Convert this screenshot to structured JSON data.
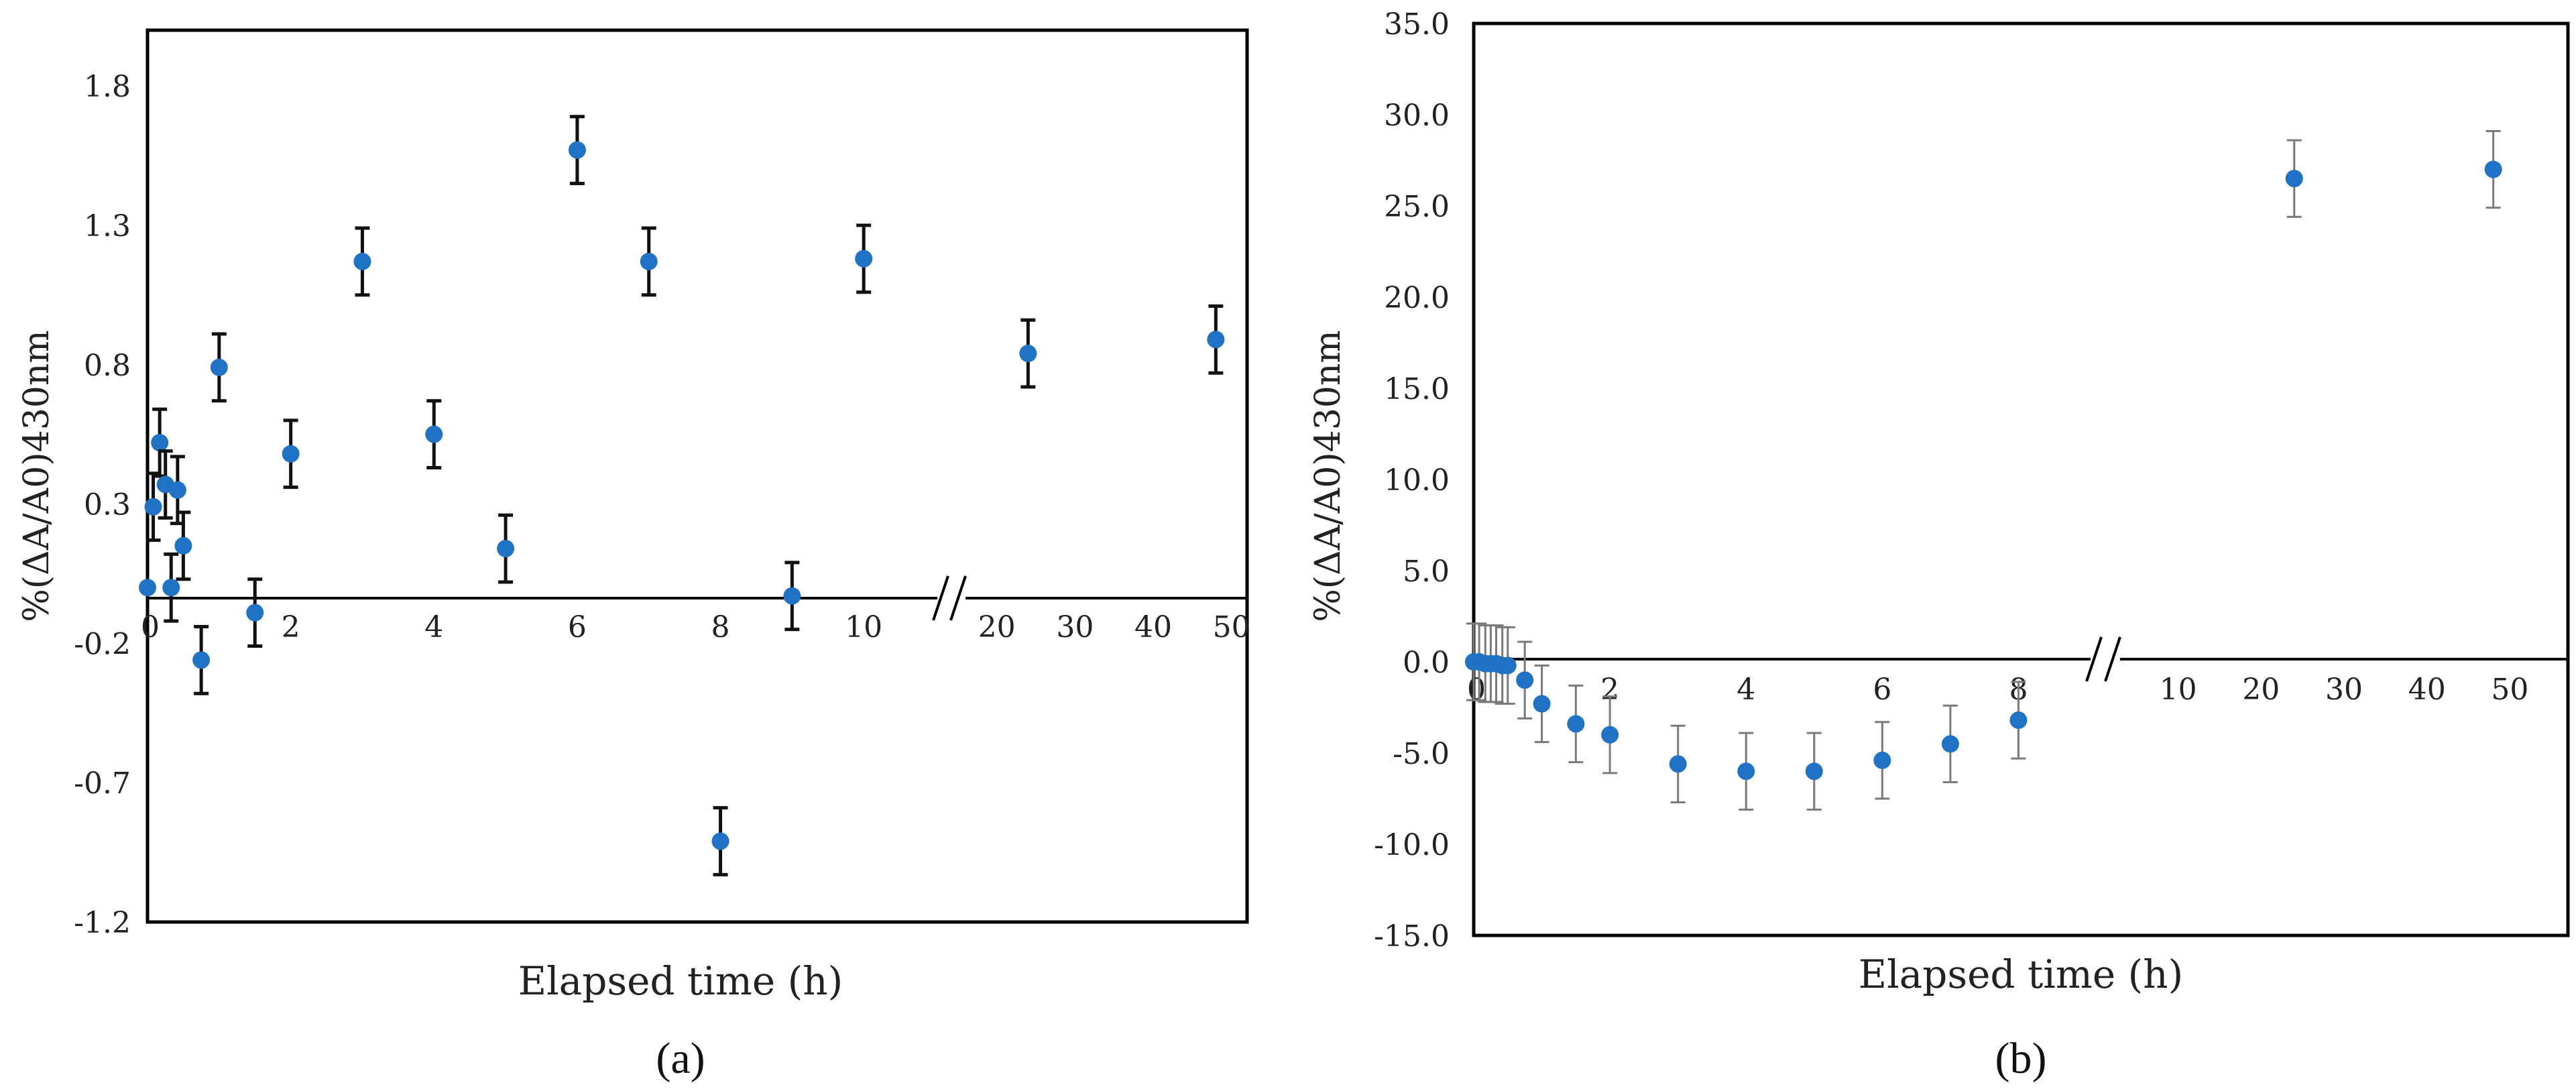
{
  "colors": {
    "marker": "#1f72c4",
    "error_bar_a": "#111111",
    "error_bar_b": "#7a7a7a",
    "frame": "#000000"
  },
  "chart_data": [
    {
      "type": "scatter",
      "panel_label": "(a)",
      "xlabel": "Elapsed time (h)",
      "ylabel": "%(ΔA/A0)430nm",
      "ylim": [
        -1.2,
        2.0
      ],
      "yticks": [
        "1.8",
        "1.3",
        "0.8",
        "0.3",
        "-0.2",
        "-0.7",
        "-1.2"
      ],
      "ytick_values": [
        1.8,
        1.3,
        0.8,
        0.3,
        -0.2,
        -0.7,
        -1.2
      ],
      "xlim_linear": [
        0,
        11
      ],
      "xticks_linear": [
        "0",
        "2",
        "4",
        "6",
        "8",
        "10"
      ],
      "xtick_linear_values": [
        0,
        2,
        4,
        6,
        8,
        10
      ],
      "xticks_broken": [
        "20",
        "30",
        "40",
        "50"
      ],
      "xtick_broken_values": [
        20,
        30,
        40,
        50
      ],
      "broken_range": [
        16,
        52
      ],
      "axis_break_at": 11,
      "points": [
        {
          "x": 0.0,
          "y": 0.0,
          "err": 0.0
        },
        {
          "x": 0.08,
          "y": 0.29,
          "err": 0.12
        },
        {
          "x": 0.17,
          "y": 0.52,
          "err": 0.12
        },
        {
          "x": 0.25,
          "y": 0.37,
          "err": 0.12
        },
        {
          "x": 0.33,
          "y": 0.0,
          "err": 0.12
        },
        {
          "x": 0.42,
          "y": 0.35,
          "err": 0.12
        },
        {
          "x": 0.5,
          "y": 0.15,
          "err": 0.12
        },
        {
          "x": 0.75,
          "y": -0.26,
          "err": 0.12
        },
        {
          "x": 1.0,
          "y": 0.79,
          "err": 0.12
        },
        {
          "x": 1.5,
          "y": -0.09,
          "err": 0.12
        },
        {
          "x": 2.0,
          "y": 0.48,
          "err": 0.12
        },
        {
          "x": 3.0,
          "y": 1.17,
          "err": 0.12
        },
        {
          "x": 4.0,
          "y": 0.55,
          "err": 0.12
        },
        {
          "x": 5.0,
          "y": 0.14,
          "err": 0.12
        },
        {
          "x": 6.0,
          "y": 1.57,
          "err": 0.12
        },
        {
          "x": 7.0,
          "y": 1.17,
          "err": 0.12
        },
        {
          "x": 8.0,
          "y": -0.91,
          "err": 0.12
        },
        {
          "x": 9.0,
          "y": -0.03,
          "err": 0.12
        },
        {
          "x": 10.0,
          "y": 1.18,
          "err": 0.12
        },
        {
          "x": 24.0,
          "y": 0.84,
          "err": 0.12
        },
        {
          "x": 48.0,
          "y": 0.89,
          "err": 0.12
        }
      ]
    },
    {
      "type": "scatter",
      "panel_label": "(b)",
      "xlabel": "Elapsed time (h)",
      "ylabel": "%(ΔA/A0)430nm",
      "ylim": [
        -15.0,
        35.0
      ],
      "yticks": [
        "35.0",
        "30.0",
        "25.0",
        "20.0",
        "15.0",
        "10.0",
        "5.0",
        "0.0",
        "-5.0",
        "-10.0",
        "-15.0"
      ],
      "ytick_values": [
        35,
        30,
        25,
        20,
        15,
        10,
        5,
        0,
        -5,
        -10,
        -15
      ],
      "xlim_linear": [
        0,
        9
      ],
      "xticks_linear": [
        "0",
        "2",
        "4",
        "6",
        "8"
      ],
      "xtick_linear_values": [
        0,
        2,
        4,
        6,
        8
      ],
      "xticks_broken": [
        "10",
        "20",
        "30",
        "40",
        "50"
      ],
      "xtick_broken_values": [
        10,
        20,
        30,
        40,
        50
      ],
      "broken_range": [
        3,
        57
      ],
      "axis_break_at": 9,
      "points": [
        {
          "x": 0.0,
          "y": 0.0,
          "err": 2.1
        },
        {
          "x": 0.08,
          "y": 0.0,
          "err": 2.1
        },
        {
          "x": 0.17,
          "y": -0.1,
          "err": 2.1
        },
        {
          "x": 0.25,
          "y": -0.1,
          "err": 2.1
        },
        {
          "x": 0.33,
          "y": -0.1,
          "err": 2.1
        },
        {
          "x": 0.42,
          "y": -0.2,
          "err": 2.1
        },
        {
          "x": 0.5,
          "y": -0.2,
          "err": 2.1
        },
        {
          "x": 0.75,
          "y": -1.0,
          "err": 2.1
        },
        {
          "x": 1.0,
          "y": -2.3,
          "err": 2.1
        },
        {
          "x": 1.5,
          "y": -3.4,
          "err": 2.1
        },
        {
          "x": 2.0,
          "y": -4.0,
          "err": 2.1
        },
        {
          "x": 3.0,
          "y": -5.6,
          "err": 2.1
        },
        {
          "x": 4.0,
          "y": -6.0,
          "err": 2.1
        },
        {
          "x": 5.0,
          "y": -6.0,
          "err": 2.1
        },
        {
          "x": 6.0,
          "y": -5.4,
          "err": 2.1
        },
        {
          "x": 7.0,
          "y": -4.5,
          "err": 2.1
        },
        {
          "x": 8.0,
          "y": -3.2,
          "err": 2.1
        },
        {
          "x": 24.0,
          "y": 26.5,
          "err": 2.1
        },
        {
          "x": 48.0,
          "y": 27.0,
          "err": 2.1
        }
      ]
    }
  ]
}
